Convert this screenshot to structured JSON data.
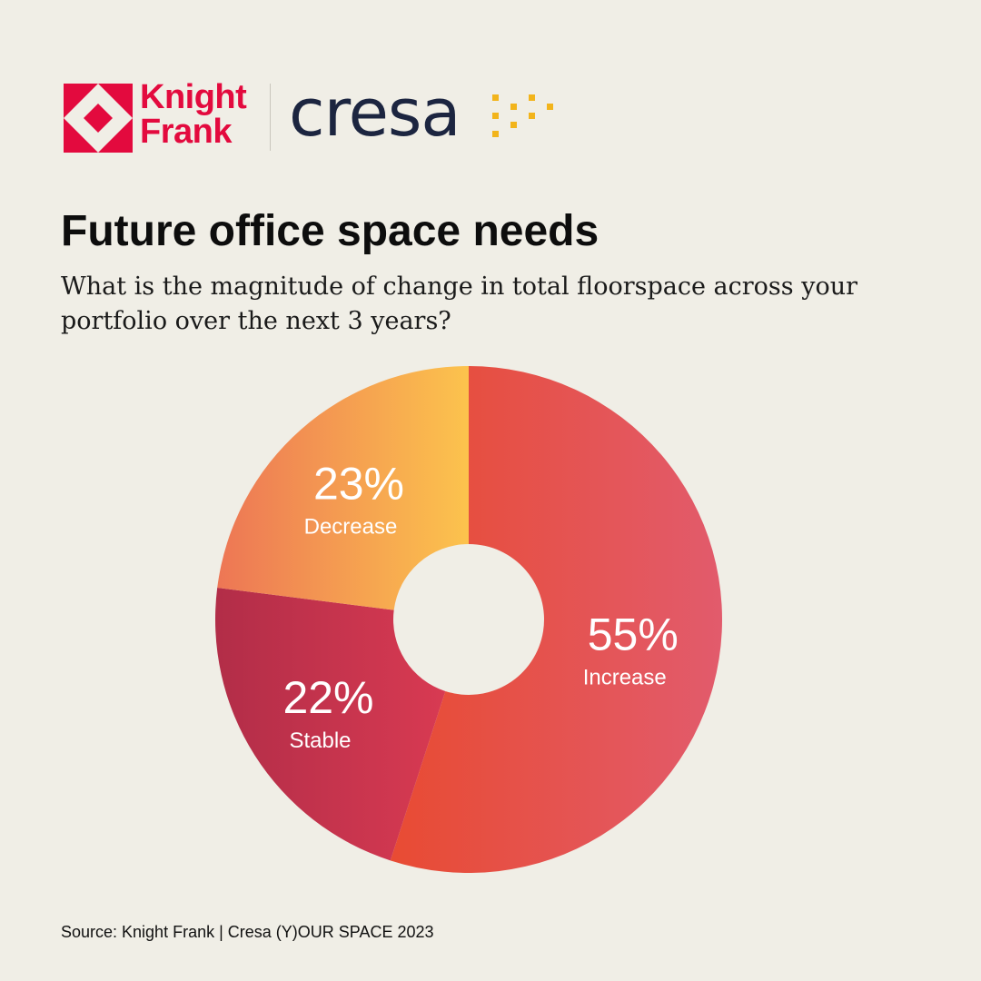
{
  "logos": {
    "knight_frank": {
      "line1": "Knight",
      "line2": "Frank",
      "color": "#e30a3e"
    },
    "cresa": {
      "text": "cresa",
      "color": "#1c2540",
      "dot_color": "#f2b41b"
    }
  },
  "title": "Future office space needs",
  "subtitle": "What is the magnitude of change in total floorspace across your portfolio over the next 3 years?",
  "source": "Source: Knight Frank | Cresa (Y)OUR SPACE 2023",
  "chart_data": {
    "type": "pie",
    "donut": true,
    "title": "Future office space needs",
    "slices": [
      {
        "label": "Increase",
        "value": 55,
        "display": "55%",
        "colors": [
          "#e84b33",
          "#e25b6c"
        ]
      },
      {
        "label": "Stable",
        "value": 22,
        "display": "22%",
        "colors": [
          "#b22d48",
          "#d83a52"
        ]
      },
      {
        "label": "Decrease",
        "value": 23,
        "display": "23%",
        "colors": [
          "#ed7655",
          "#fcc34d"
        ]
      }
    ],
    "legend": "none"
  }
}
